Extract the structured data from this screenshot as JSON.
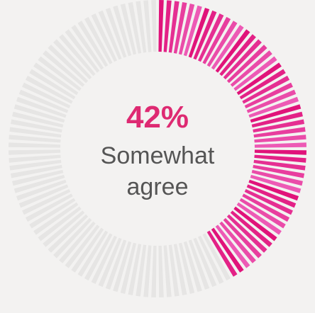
{
  "chart_data": {
    "type": "pie",
    "style": "radial tick gauge (donut of thin ticks)",
    "value_percent": 42,
    "value_label": "42%",
    "category_lines": [
      "Somewhat",
      "agree"
    ],
    "colors": {
      "filled_start": "#e0137a",
      "filled_end": "#f06cc4",
      "remaining": "#e6e5e4",
      "background": "#f3f2f1",
      "value_text": "#de2a72",
      "label_text": "#555555"
    }
  }
}
